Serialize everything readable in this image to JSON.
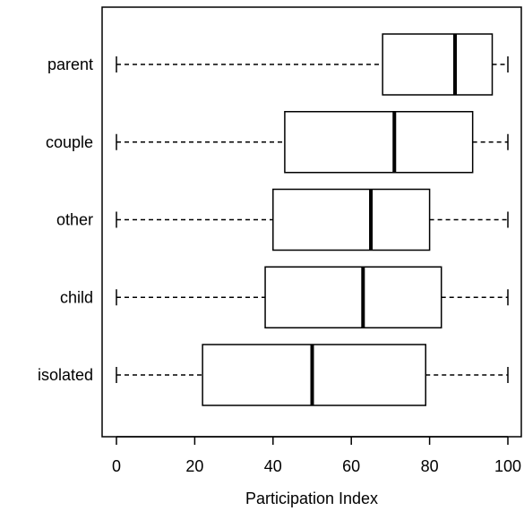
{
  "chart_data": {
    "type": "boxplot",
    "orientation": "horizontal",
    "title": "",
    "xlabel": "Participation Index",
    "ylabel": "",
    "xlim": [
      0,
      100
    ],
    "x_ticks": [
      0,
      20,
      40,
      60,
      80,
      100
    ],
    "grid": false,
    "legend": "none",
    "categories": [
      "parent",
      "couple",
      "other",
      "child",
      "isolated"
    ],
    "boxes": [
      {
        "category": "parent",
        "min": 0,
        "q1": 68,
        "median": 86.5,
        "q3": 96,
        "max": 100
      },
      {
        "category": "couple",
        "min": 0,
        "q1": 43,
        "median": 71,
        "q3": 91,
        "max": 100
      },
      {
        "category": "other",
        "min": 0,
        "q1": 40,
        "median": 65,
        "q3": 80,
        "max": 100
      },
      {
        "category": "child",
        "min": 0,
        "q1": 38,
        "median": 63,
        "q3": 83,
        "max": 100
      },
      {
        "category": "isolated",
        "min": 0,
        "q1": 22,
        "median": 50,
        "q3": 79,
        "max": 100
      }
    ],
    "colors": {
      "stroke": "#000000",
      "fill": "#ffffff"
    }
  }
}
